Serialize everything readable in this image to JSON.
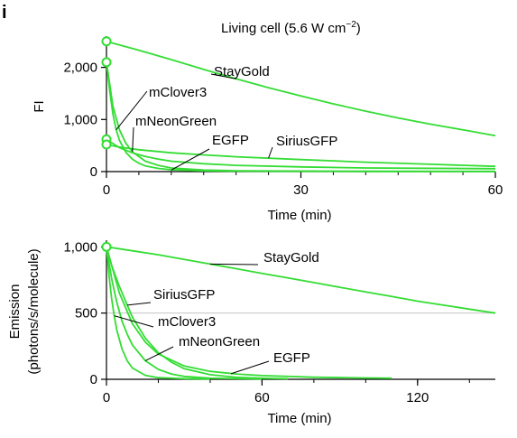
{
  "panel_label": "i",
  "chart_data": [
    {
      "type": "line",
      "title": "Living cell (5.6 W cm",
      "title_superscript": "−2",
      "title_suffix": ")",
      "xlabel": "Time (min)",
      "ylabel": "FI",
      "xlim": [
        0,
        60
      ],
      "ylim": [
        0,
        2600
      ],
      "xticks": [
        0,
        30,
        60
      ],
      "xtick_labels": [
        "0",
        "30",
        "60"
      ],
      "yticks": [
        0,
        1000,
        2000
      ],
      "ytick_labels": [
        "0",
        "1,000",
        "2,000"
      ],
      "grid": false,
      "legend": "inline labels",
      "series": [
        {
          "name": "StayGold",
          "color": "#33dd33",
          "x": [
            0,
            5,
            10,
            15,
            20,
            25,
            30,
            35,
            40,
            45,
            50,
            55,
            60
          ],
          "y": [
            2500,
            2330,
            2150,
            1960,
            1780,
            1610,
            1450,
            1300,
            1160,
            1030,
            910,
            800,
            690
          ]
        },
        {
          "name": "mClover3",
          "color": "#33dd33",
          "x": [
            0,
            0.5,
            1,
            1.5,
            2,
            3,
            4,
            5,
            6,
            8,
            10,
            15,
            20,
            40,
            60
          ],
          "y": [
            2100,
            1550,
            1100,
            800,
            600,
            370,
            240,
            160,
            110,
            60,
            35,
            15,
            8,
            3,
            2
          ]
        },
        {
          "name": "mNeonGreen",
          "color": "#33dd33",
          "x": [
            0,
            1,
            2,
            3,
            4,
            6,
            8,
            10,
            15,
            20,
            40,
            60
          ],
          "y": [
            2100,
            1250,
            800,
            540,
            380,
            200,
            120,
            70,
            30,
            15,
            5,
            3
          ]
        },
        {
          "name": "EGFP",
          "color": "#33dd33",
          "x": [
            0,
            2,
            4,
            6,
            8,
            10,
            15,
            20,
            30,
            40,
            60
          ],
          "y": [
            620,
            460,
            360,
            290,
            240,
            200,
            150,
            120,
            90,
            70,
            55
          ]
        },
        {
          "name": "SiriusGFP",
          "color": "#33dd33",
          "x": [
            0,
            2,
            5,
            10,
            15,
            20,
            30,
            40,
            50,
            60
          ],
          "y": [
            520,
            470,
            420,
            360,
            320,
            285,
            230,
            180,
            140,
            100
          ]
        }
      ],
      "start_markers": [
        2500,
        2100,
        620,
        520
      ]
    },
    {
      "type": "line",
      "xlabel": "Time (min)",
      "ylabel": "Emission",
      "ylabel_line2": "(photons/s/molecule)",
      "xlim": [
        0,
        150
      ],
      "ylim": [
        0,
        1050
      ],
      "xticks": [
        0,
        60,
        120
      ],
      "xtick_labels": [
        "0",
        "60",
        "120"
      ],
      "yticks": [
        0,
        500,
        1000
      ],
      "ytick_labels": [
        "0",
        "500",
        "1,000"
      ],
      "grid": "horizontal line at 500",
      "legend": "inline labels",
      "series": [
        {
          "name": "StayGold",
          "color": "#33dd33",
          "x": [
            0,
            10,
            20,
            30,
            40,
            50,
            60,
            70,
            80,
            90,
            100,
            110,
            120,
            130,
            140,
            150
          ],
          "y": [
            1000,
            970,
            940,
            905,
            870,
            835,
            800,
            765,
            730,
            695,
            660,
            625,
            590,
            560,
            530,
            500
          ]
        },
        {
          "name": "SiriusGFP",
          "color": "#33dd33",
          "x": [
            0,
            2,
            5,
            8,
            10,
            15,
            20,
            25,
            30,
            40,
            50,
            60,
            70
          ],
          "y": [
            1000,
            860,
            700,
            560,
            470,
            310,
            200,
            130,
            80,
            35,
            15,
            8,
            4
          ]
        },
        {
          "name": "mClover3",
          "color": "#33dd33",
          "x": [
            0,
            1,
            2,
            3,
            4,
            6,
            8,
            10,
            15,
            20,
            30,
            40
          ],
          "y": [
            1000,
            780,
            610,
            480,
            370,
            230,
            140,
            85,
            30,
            12,
            5,
            3
          ]
        },
        {
          "name": "mNeonGreen",
          "color": "#33dd33",
          "x": [
            0,
            2,
            4,
            6,
            8,
            10,
            15,
            20,
            25,
            30,
            40,
            60
          ],
          "y": [
            1000,
            760,
            580,
            440,
            340,
            260,
            140,
            75,
            40,
            22,
            8,
            3
          ]
        },
        {
          "name": "EGFP",
          "color": "#33dd33",
          "x": [
            0,
            5,
            10,
            15,
            20,
            30,
            40,
            50,
            60,
            80,
            100,
            110
          ],
          "y": [
            1000,
            650,
            420,
            280,
            190,
            100,
            60,
            40,
            28,
            16,
            10,
            8
          ]
        }
      ],
      "start_markers": [
        1000
      ]
    }
  ]
}
